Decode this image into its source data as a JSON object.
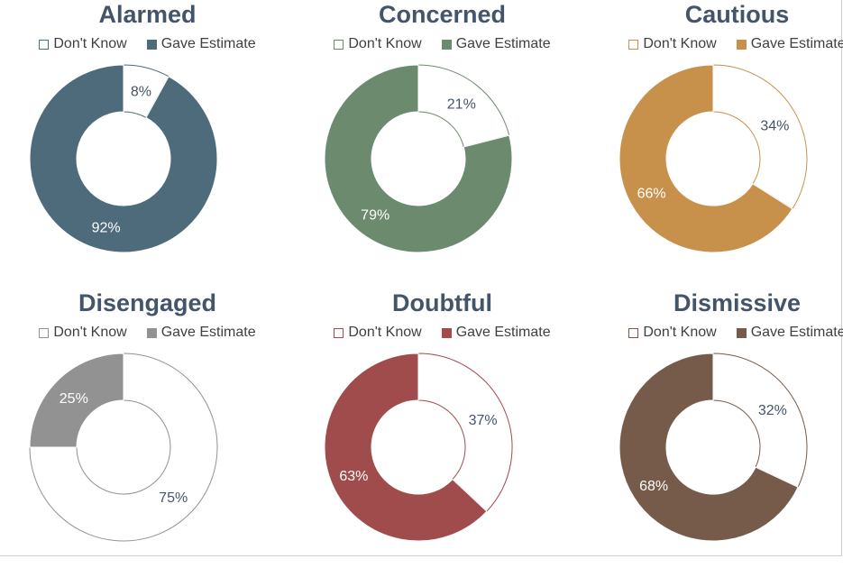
{
  "chart_data": [
    {
      "type": "pie",
      "title": "Alarmed",
      "categories": [
        "Don't Know",
        "Gave Estimate"
      ],
      "values": [
        8,
        92
      ],
      "labels": [
        "8%",
        "92%"
      ],
      "colors": {
        "segment": "#4e6b7c",
        "outline": "#4e6b7c",
        "empty": "#ffffff"
      },
      "label_colors": [
        "#44546a",
        "#ffffff"
      ],
      "legend": "top"
    },
    {
      "type": "pie",
      "title": "Concerned",
      "categories": [
        "Don't Know",
        "Gave Estimate"
      ],
      "values": [
        21,
        79
      ],
      "labels": [
        "21%",
        "79%"
      ],
      "colors": {
        "segment": "#6c8a6d",
        "outline": "#6c8a6d",
        "empty": "#ffffff"
      },
      "label_colors": [
        "#44546a",
        "#ffffff"
      ],
      "legend": "top"
    },
    {
      "type": "pie",
      "title": "Cautious",
      "categories": [
        "Don't Know",
        "Gave Estimate"
      ],
      "values": [
        34,
        66
      ],
      "labels": [
        "34%",
        "66%"
      ],
      "colors": {
        "segment": "#c8914b",
        "outline": "#c8914b",
        "empty": "#ffffff"
      },
      "label_colors": [
        "#44546a",
        "#ffffff"
      ],
      "legend": "top"
    },
    {
      "type": "pie",
      "title": "Disengaged",
      "categories": [
        "Don't Know",
        "Gave Estimate"
      ],
      "values": [
        75,
        25
      ],
      "labels": [
        "75%",
        "25%"
      ],
      "colors": {
        "segment": "#929292",
        "outline": "#929292",
        "empty": "#ffffff"
      },
      "label_colors": [
        "#44546a",
        "#ffffff"
      ],
      "legend": "top"
    },
    {
      "type": "pie",
      "title": "Doubtful",
      "categories": [
        "Don't Know",
        "Gave Estimate"
      ],
      "values": [
        37,
        63
      ],
      "labels": [
        "37%",
        "63%"
      ],
      "colors": {
        "segment": "#a04c4c",
        "outline": "#a04c4c",
        "empty": "#ffffff"
      },
      "label_colors": [
        "#44546a",
        "#ffffff"
      ],
      "legend": "top"
    },
    {
      "type": "pie",
      "title": "Dismissive",
      "categories": [
        "Don't Know",
        "Gave Estimate"
      ],
      "values": [
        32,
        68
      ],
      "labels": [
        "32%",
        "68%"
      ],
      "colors": {
        "segment": "#765a4a",
        "outline": "#765a4a",
        "empty": "#ffffff"
      },
      "label_colors": [
        "#44546a",
        "#ffffff"
      ],
      "legend": "top"
    }
  ]
}
